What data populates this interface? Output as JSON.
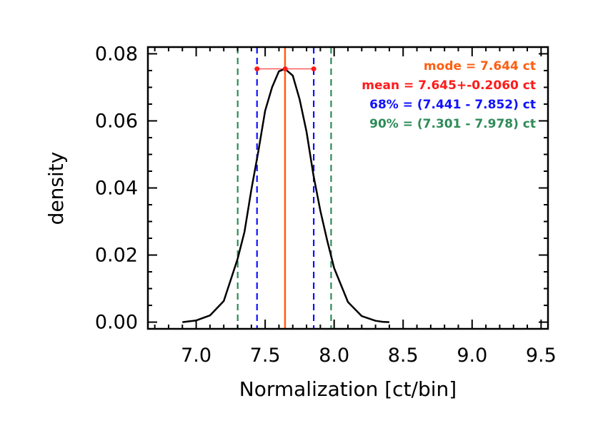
{
  "chart_data": {
    "type": "line",
    "xlabel": "Normalization [ct/bin]",
    "ylabel": "density",
    "xlim": [
      6.65,
      9.55
    ],
    "ylim": [
      -0.002,
      0.082
    ],
    "x_ticks": [
      7.0,
      7.5,
      8.0,
      8.5,
      9.0,
      9.5
    ],
    "x_tick_labels": [
      "7.0",
      "7.5",
      "8.0",
      "8.5",
      "9.0",
      "9.5"
    ],
    "y_ticks": [
      0.0,
      0.02,
      0.04,
      0.06,
      0.08
    ],
    "y_tick_labels": [
      "0.00",
      "0.02",
      "0.04",
      "0.06",
      "0.08"
    ],
    "series": [
      {
        "color": "#000000",
        "style": "solid",
        "x": [
          6.9,
          7.0,
          7.1,
          7.2,
          7.3,
          7.35,
          7.4,
          7.45,
          7.5,
          7.55,
          7.6,
          7.644,
          7.7,
          7.75,
          7.8,
          7.85,
          7.9,
          7.95,
          8.0,
          8.1,
          8.2,
          8.3,
          8.35,
          8.4
        ],
        "y": [
          0.0,
          0.0005,
          0.002,
          0.0063,
          0.0188,
          0.0269,
          0.0395,
          0.0508,
          0.063,
          0.07,
          0.0748,
          0.0755,
          0.0735,
          0.0664,
          0.0567,
          0.0438,
          0.0332,
          0.0243,
          0.0161,
          0.006,
          0.0018,
          0.0004,
          0.0001,
          0.0
        ]
      }
    ],
    "vlines": [
      {
        "name": "mode",
        "x": 7.644,
        "color": "#ff5e10",
        "style": "solid"
      },
      {
        "name": "68-low",
        "x": 7.441,
        "color": "#1010ff",
        "style": "dashed"
      },
      {
        "name": "68-high",
        "x": 7.852,
        "color": "#1010ff",
        "style": "dashed"
      },
      {
        "name": "90-low",
        "x": 7.301,
        "color": "#2e8b57",
        "style": "dashed"
      },
      {
        "name": "90-high",
        "x": 7.978,
        "color": "#2e8b57",
        "style": "dashed"
      }
    ],
    "errorbar": {
      "x_low": 7.441,
      "x_mid": 7.645,
      "x_high": 7.852,
      "y": 0.0755,
      "color": "#ff1a1a"
    },
    "annotations": [
      {
        "text": "mode = 7.644 ct",
        "color": "#ff5e10"
      },
      {
        "text": "mean = 7.645+-0.2060 ct",
        "color": "#ff1a1a"
      },
      {
        "text": "68% = (7.441 - 7.852) ct",
        "color": "#1010ff"
      },
      {
        "text": "90% = (7.301 - 7.978) ct",
        "color": "#2e8b57"
      }
    ]
  }
}
